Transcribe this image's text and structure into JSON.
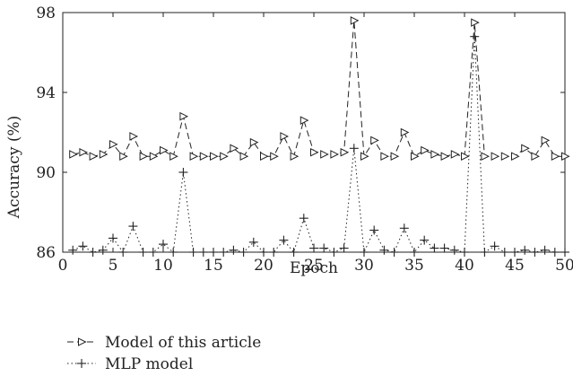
{
  "chart_data": {
    "type": "line",
    "title": "",
    "xlabel": "Epoch",
    "ylabel": "Accuracy (%)",
    "xlim": [
      0,
      50
    ],
    "ylim": [
      86,
      98
    ],
    "xticks": [
      0,
      5,
      10,
      15,
      20,
      25,
      30,
      35,
      40,
      45,
      50
    ],
    "yticks": [
      86,
      90,
      94,
      98
    ],
    "grid": false,
    "legend_position": "bottom-left",
    "x": [
      1,
      2,
      3,
      4,
      5,
      6,
      7,
      8,
      9,
      10,
      11,
      12,
      13,
      14,
      15,
      16,
      17,
      18,
      19,
      20,
      21,
      22,
      23,
      24,
      25,
      26,
      27,
      28,
      29,
      30,
      31,
      32,
      33,
      34,
      35,
      36,
      37,
      38,
      39,
      40,
      41,
      42,
      43,
      44,
      45,
      46,
      47,
      48,
      49,
      50
    ],
    "series": [
      {
        "name": "Model of this article",
        "line_style": "dashed",
        "marker": "triangle-right",
        "color": "#222222",
        "values": [
          90.9,
          91.0,
          90.8,
          90.9,
          91.4,
          90.8,
          91.8,
          90.8,
          90.8,
          91.1,
          90.8,
          92.8,
          90.8,
          90.8,
          90.8,
          90.8,
          91.2,
          90.8,
          91.5,
          90.8,
          90.8,
          91.8,
          90.8,
          92.6,
          91.0,
          90.9,
          90.9,
          91.0,
          97.6,
          90.8,
          91.6,
          90.8,
          90.8,
          92.0,
          90.8,
          91.1,
          90.9,
          90.8,
          90.9,
          90.8,
          97.5,
          90.8,
          90.8,
          90.8,
          90.8,
          91.2,
          90.8,
          91.6,
          90.8,
          90.8
        ]
      },
      {
        "name": "MLP model",
        "line_style": "dotted",
        "marker": "plus",
        "color": "#222222",
        "values": [
          86.1,
          86.3,
          86.0,
          86.1,
          86.7,
          86.0,
          87.3,
          86.0,
          86.0,
          86.4,
          86.0,
          90.0,
          86.0,
          86.0,
          86.0,
          86.0,
          86.1,
          86.0,
          86.5,
          86.0,
          86.0,
          86.6,
          86.0,
          87.7,
          86.2,
          86.2,
          86.0,
          86.2,
          91.2,
          86.0,
          87.1,
          86.1,
          86.0,
          87.2,
          86.0,
          86.6,
          86.2,
          86.2,
          86.1,
          86.0,
          96.8,
          86.0,
          86.3,
          86.0,
          86.0,
          86.1,
          86.0,
          86.1,
          86.0,
          86.0
        ]
      }
    ]
  }
}
